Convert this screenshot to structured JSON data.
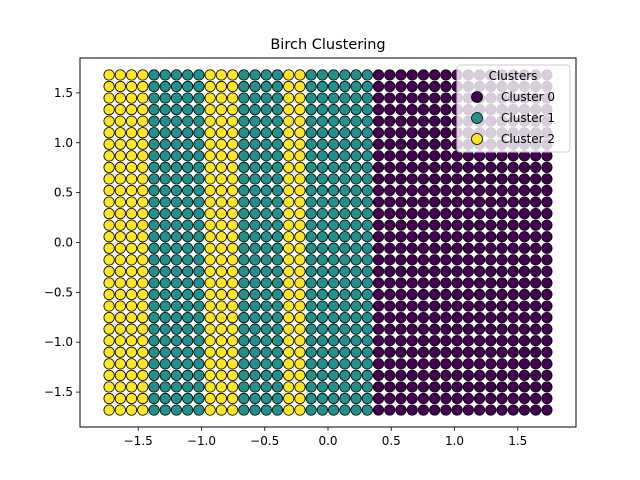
{
  "chart_data": {
    "type": "scatter",
    "title": "Birch Clustering",
    "xlabel": "",
    "ylabel": "",
    "xlim": [
      -1.96,
      1.96
    ],
    "ylim": [
      -1.85,
      1.85
    ],
    "xticks": [
      -1.5,
      -1.0,
      -0.5,
      0.0,
      0.5,
      1.0,
      1.5
    ],
    "xtick_labels": [
      "−1.5",
      "−1.0",
      "−0.5",
      "0.0",
      "0.5",
      "1.0",
      "1.5"
    ],
    "yticks": [
      -1.5,
      -1.0,
      -0.5,
      0.0,
      0.5,
      1.0,
      1.5
    ],
    "ytick_labels": [
      "−1.5",
      "−1.0",
      "−0.5",
      "0.0",
      "0.5",
      "1.0",
      "1.5"
    ],
    "grid": false,
    "legend": {
      "title": "Clusters",
      "placement": "top-right",
      "entries": [
        "Cluster 0",
        "Cluster 1",
        "Cluster 2"
      ]
    },
    "colors": {
      "Cluster 0": "#440154",
      "Cluster 1": "#21918c",
      "Cluster 2": "#fde725",
      "edge": "#000000"
    },
    "points_grid": {
      "x_min": -1.73,
      "x_max": 1.73,
      "nx": 40,
      "y_min": -1.68,
      "y_max": 1.68,
      "ny": 30
    },
    "series": [
      {
        "name": "Cluster 2",
        "x_ranges": [
          [
            -1.73,
            -1.4
          ],
          [
            -1.0,
            -0.72
          ],
          [
            -0.32,
            -0.22
          ]
        ]
      },
      {
        "name": "Cluster 1",
        "x_ranges": [
          [
            -1.4,
            -1.0
          ],
          [
            -0.72,
            -0.32
          ],
          [
            -0.22,
            0.35
          ]
        ]
      },
      {
        "name": "Cluster 0",
        "x_ranges": [
          [
            0.35,
            1.73
          ]
        ]
      }
    ]
  }
}
